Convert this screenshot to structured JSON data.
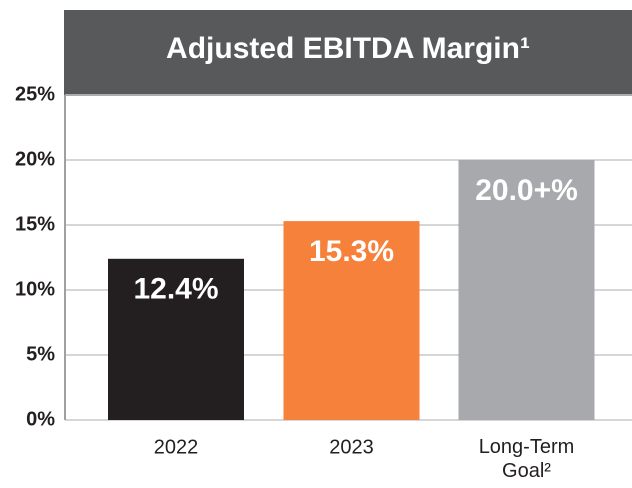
{
  "chart_data": {
    "type": "bar",
    "title": "Adjusted EBITDA Margin¹",
    "categories": [
      "2022",
      "2023",
      "Long-Term Goal²"
    ],
    "values": [
      12.4,
      15.3,
      20.0
    ],
    "value_labels": [
      "12.4%",
      "15.3%",
      "20.0+%"
    ],
    "colors": [
      "#231f20",
      "#f5813a",
      "#a7a9ac"
    ],
    "ylim": [
      0,
      25
    ],
    "yticks": [
      {
        "value": 0,
        "label": "0%"
      },
      {
        "value": 5,
        "label": "5%"
      },
      {
        "value": 10,
        "label": "10%"
      },
      {
        "value": 15,
        "label": "15%"
      },
      {
        "value": 20,
        "label": "20%"
      },
      {
        "value": 25,
        "label": "25%"
      }
    ],
    "grid": true
  }
}
